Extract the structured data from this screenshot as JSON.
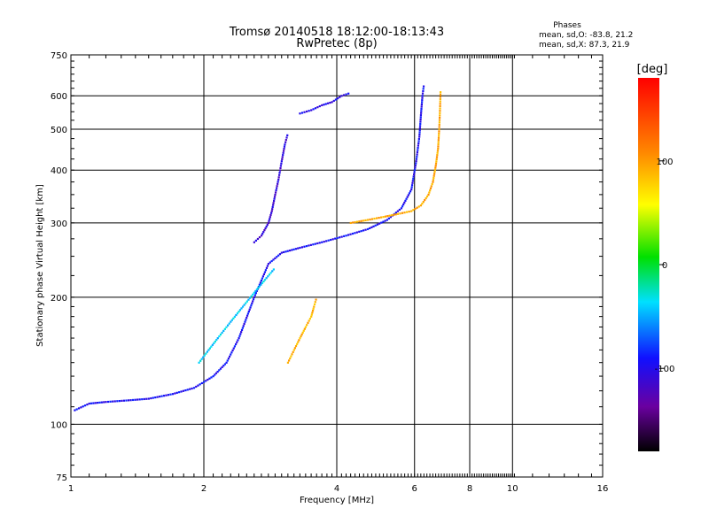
{
  "chart_data": {
    "type": "scatter",
    "title": "Tromsø 20140518 18:12:00-18:13:43",
    "subtitle": "RwPretec (8p)",
    "xlabel": "Frequency [MHz]",
    "ylabel": "Stationary phase Virtual Height [km]",
    "x_scale": "log",
    "y_scale": "log",
    "xlim": [
      1,
      16
    ],
    "ylim": [
      75,
      750
    ],
    "x_ticks": [
      1,
      2,
      4,
      6,
      8,
      10,
      16
    ],
    "x_tick_labels": [
      "1",
      "2",
      "4",
      "6",
      "8",
      "10",
      "16"
    ],
    "y_ticks": [
      75,
      100,
      200,
      300,
      400,
      500,
      600,
      750
    ],
    "y_tick_labels": [
      "75",
      "100",
      "200",
      "300",
      "400",
      "500",
      "600",
      "750"
    ],
    "grid": true,
    "phase_box": {
      "title": "Phases",
      "line_o": "mean, sd,O: -83.8, 21.2",
      "line_x": "mean, sd,X:  87.3, 21.9"
    },
    "colorbar": {
      "label": "[deg]",
      "range": [
        -180,
        180
      ],
      "ticks": [
        100,
        0,
        -100
      ],
      "tick_labels": [
        "100",
        "0",
        "-100"
      ],
      "colormap": "rainbow"
    },
    "traces": [
      {
        "name": "",
        "phase": -95,
        "x": [
          1.02,
          1.1,
          1.2,
          1.35,
          1.5,
          1.7,
          1.9,
          2.0,
          2.1,
          2.25,
          2.4,
          2.6,
          2.8,
          3.0,
          3.3,
          3.7,
          4.2,
          4.7,
          5.2,
          5.6,
          5.9,
          6.05,
          6.15,
          6.2,
          6.25,
          6.3
        ],
        "y": [
          108,
          112,
          113,
          114,
          115,
          118,
          122,
          126,
          130,
          140,
          160,
          200,
          240,
          255,
          262,
          270,
          280,
          290,
          305,
          325,
          360,
          420,
          480,
          540,
          600,
          640
        ]
      },
      {
        "name": "",
        "phase": 95,
        "x": [
          4.3,
          4.7,
          5.1,
          5.5,
          5.9,
          6.2,
          6.45,
          6.6,
          6.7,
          6.78,
          6.82,
          6.85,
          6.87
        ],
        "y": [
          300,
          305,
          310,
          315,
          320,
          330,
          350,
          375,
          410,
          450,
          500,
          560,
          620
        ]
      },
      {
        "name": "",
        "phase": -110,
        "x": [
          2.6,
          2.7,
          2.8,
          2.85,
          2.9,
          2.95,
          3.0,
          3.05,
          3.1
        ],
        "y": [
          270,
          280,
          300,
          320,
          350,
          380,
          420,
          460,
          490
        ]
      },
      {
        "name": "",
        "phase": -40,
        "x": [
          1.95,
          2.05,
          2.15,
          2.3,
          2.45,
          2.6,
          2.75,
          2.9
        ],
        "y": [
          140,
          150,
          160,
          175,
          190,
          205,
          220,
          235
        ]
      },
      {
        "name": "",
        "phase": 90,
        "x": [
          3.1,
          3.2,
          3.3,
          3.4,
          3.5,
          3.55,
          3.6
        ],
        "y": [
          140,
          150,
          160,
          170,
          180,
          190,
          200
        ]
      },
      {
        "name": "",
        "phase": -100,
        "x": [
          3.3,
          3.5,
          3.7,
          3.9,
          4.1,
          4.3
        ],
        "y": [
          545,
          555,
          570,
          580,
          600,
          610
        ]
      }
    ]
  }
}
